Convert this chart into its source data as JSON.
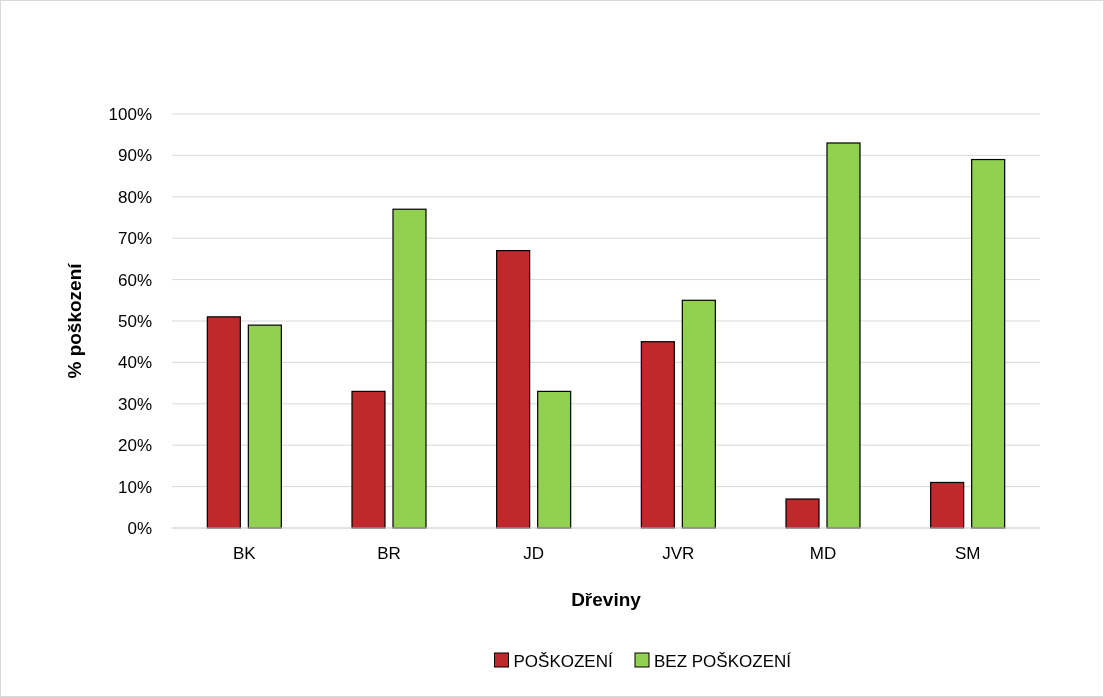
{
  "chart_data": {
    "type": "bar",
    "xlabel": "Dřeviny",
    "ylabel": "% poškození",
    "categories": [
      "BK",
      "BR",
      "JD",
      "JVR",
      "MD",
      "SM"
    ],
    "series": [
      {
        "name": "POŠKOZENÍ",
        "color": "#c0292b",
        "values": [
          51,
          33,
          67,
          45,
          7,
          11
        ]
      },
      {
        "name": "BEZ POŠKOZENÍ",
        "color": "#92d050",
        "values": [
          49,
          77,
          33,
          55,
          93,
          89
        ]
      }
    ],
    "ylim": [
      0,
      100
    ],
    "yticks": [
      {
        "value": 0,
        "label": "0%"
      },
      {
        "value": 10,
        "label": "10%"
      },
      {
        "value": 20,
        "label": "20%"
      },
      {
        "value": 30,
        "label": "30%"
      },
      {
        "value": 40,
        "label": "40%"
      },
      {
        "value": 50,
        "label": "50%"
      },
      {
        "value": 60,
        "label": "60%"
      },
      {
        "value": 70,
        "label": "70%"
      },
      {
        "value": 80,
        "label": "80%"
      },
      {
        "value": 90,
        "label": "90%"
      },
      {
        "value": 100,
        "label": "100%"
      }
    ],
    "grid": "y",
    "legend": "bottom"
  }
}
